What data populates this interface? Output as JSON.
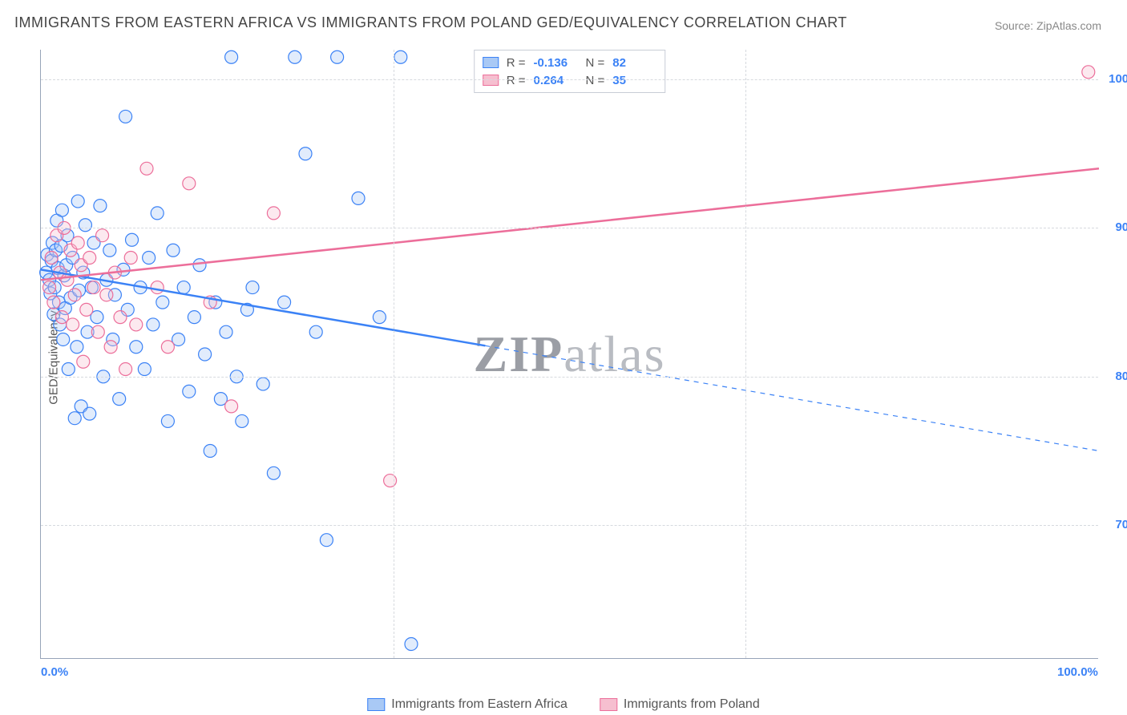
{
  "title": "IMMIGRANTS FROM EASTERN AFRICA VS IMMIGRANTS FROM POLAND GED/EQUIVALENCY CORRELATION CHART",
  "source": "Source: ZipAtlas.com",
  "ylabel": "GED/Equivalency",
  "watermark_a": "ZIP",
  "watermark_b": "atlas",
  "chart": {
    "type": "scatter",
    "background_color": "#ffffff",
    "grid_color": "#d6d9de",
    "axis_color": "#97a4b8",
    "tick_label_color": "#3b82f6",
    "text_color": "#555555",
    "xlim": [
      0,
      100
    ],
    "ylim": [
      61,
      102
    ],
    "x_ticks": [
      0,
      100
    ],
    "x_tick_labels": [
      "0.0%",
      "100.0%"
    ],
    "x_grid_at": [
      33.3,
      66.6
    ],
    "y_ticks": [
      70,
      80,
      90,
      100
    ],
    "y_tick_labels": [
      "70.0%",
      "80.0%",
      "90.0%",
      "100.0%"
    ],
    "marker_radius": 8,
    "marker_stroke_width": 1.2,
    "marker_fill_opacity": 0.35,
    "series": [
      {
        "name": "Immigrants from Eastern Africa",
        "color": "#3b82f6",
        "fill": "#a9c9f5",
        "R": "-0.136",
        "N": "82",
        "trend": {
          "x1": 0,
          "y1": 87.2,
          "x2": 100,
          "y2": 75.0,
          "width": 2.5,
          "solid_until_x": 42,
          "dashed_after": true
        },
        "points": [
          [
            0.5,
            87.0
          ],
          [
            0.6,
            88.2
          ],
          [
            0.8,
            86.5
          ],
          [
            0.9,
            85.6
          ],
          [
            1.0,
            87.8
          ],
          [
            1.1,
            89.0
          ],
          [
            1.2,
            84.2
          ],
          [
            1.3,
            86.0
          ],
          [
            1.4,
            88.5
          ],
          [
            1.5,
            90.5
          ],
          [
            1.6,
            87.3
          ],
          [
            1.7,
            85.0
          ],
          [
            1.8,
            83.5
          ],
          [
            1.9,
            88.8
          ],
          [
            2.0,
            91.2
          ],
          [
            2.1,
            82.5
          ],
          [
            2.2,
            86.8
          ],
          [
            2.3,
            84.6
          ],
          [
            2.4,
            87.5
          ],
          [
            2.5,
            89.5
          ],
          [
            2.6,
            80.5
          ],
          [
            2.8,
            85.3
          ],
          [
            3.0,
            88.0
          ],
          [
            3.2,
            77.2
          ],
          [
            3.4,
            82.0
          ],
          [
            3.5,
            91.8
          ],
          [
            3.6,
            85.8
          ],
          [
            3.8,
            78.0
          ],
          [
            4.0,
            87.0
          ],
          [
            4.2,
            90.2
          ],
          [
            4.4,
            83.0
          ],
          [
            4.6,
            77.5
          ],
          [
            4.8,
            86.0
          ],
          [
            5.0,
            89.0
          ],
          [
            5.3,
            84.0
          ],
          [
            5.6,
            91.5
          ],
          [
            5.9,
            80.0
          ],
          [
            6.2,
            86.5
          ],
          [
            6.5,
            88.5
          ],
          [
            6.8,
            82.5
          ],
          [
            7.0,
            85.5
          ],
          [
            7.4,
            78.5
          ],
          [
            7.8,
            87.2
          ],
          [
            8.0,
            97.5
          ],
          [
            8.2,
            84.5
          ],
          [
            8.6,
            89.2
          ],
          [
            9.0,
            82.0
          ],
          [
            9.4,
            86.0
          ],
          [
            9.8,
            80.5
          ],
          [
            10.2,
            88.0
          ],
          [
            10.6,
            83.5
          ],
          [
            11.0,
            91.0
          ],
          [
            11.5,
            85.0
          ],
          [
            12.0,
            77.0
          ],
          [
            12.5,
            88.5
          ],
          [
            13.0,
            82.5
          ],
          [
            13.5,
            86.0
          ],
          [
            14.0,
            79.0
          ],
          [
            14.5,
            84.0
          ],
          [
            15.0,
            87.5
          ],
          [
            15.5,
            81.5
          ],
          [
            16.0,
            75.0
          ],
          [
            16.5,
            85.0
          ],
          [
            17.0,
            78.5
          ],
          [
            17.5,
            83.0
          ],
          [
            18.0,
            101.5
          ],
          [
            18.5,
            80.0
          ],
          [
            19.0,
            77.0
          ],
          [
            19.5,
            84.5
          ],
          [
            20.0,
            86.0
          ],
          [
            21.0,
            79.5
          ],
          [
            22.0,
            73.5
          ],
          [
            23.0,
            85.0
          ],
          [
            24.0,
            101.5
          ],
          [
            25.0,
            95.0
          ],
          [
            26.0,
            83.0
          ],
          [
            27.0,
            69.0
          ],
          [
            28.0,
            101.5
          ],
          [
            30.0,
            92.0
          ],
          [
            32.0,
            84.0
          ],
          [
            34.0,
            101.5
          ],
          [
            35.0,
            62.0
          ]
        ]
      },
      {
        "name": "Immigrants from Poland",
        "color": "#ec6e9a",
        "fill": "#f6bfd0",
        "R": "0.264",
        "N": "35",
        "trend": {
          "x1": 0,
          "y1": 86.5,
          "x2": 100,
          "y2": 94.0,
          "width": 2.5,
          "solid_until_x": 100,
          "dashed_after": false
        },
        "points": [
          [
            0.8,
            86.0
          ],
          [
            1.0,
            88.0
          ],
          [
            1.2,
            85.0
          ],
          [
            1.5,
            89.5
          ],
          [
            1.8,
            87.0
          ],
          [
            2.0,
            84.0
          ],
          [
            2.2,
            90.0
          ],
          [
            2.5,
            86.5
          ],
          [
            2.8,
            88.5
          ],
          [
            3.0,
            83.5
          ],
          [
            3.2,
            85.5
          ],
          [
            3.5,
            89.0
          ],
          [
            3.8,
            87.5
          ],
          [
            4.0,
            81.0
          ],
          [
            4.3,
            84.5
          ],
          [
            4.6,
            88.0
          ],
          [
            5.0,
            86.0
          ],
          [
            5.4,
            83.0
          ],
          [
            5.8,
            89.5
          ],
          [
            6.2,
            85.5
          ],
          [
            6.6,
            82.0
          ],
          [
            7.0,
            87.0
          ],
          [
            7.5,
            84.0
          ],
          [
            8.0,
            80.5
          ],
          [
            8.5,
            88.0
          ],
          [
            9.0,
            83.5
          ],
          [
            10.0,
            94.0
          ],
          [
            11.0,
            86.0
          ],
          [
            12.0,
            82.0
          ],
          [
            14.0,
            93.0
          ],
          [
            16.0,
            85.0
          ],
          [
            18.0,
            78.0
          ],
          [
            22.0,
            91.0
          ],
          [
            33.0,
            73.0
          ],
          [
            99.0,
            100.5
          ]
        ]
      }
    ],
    "legend_bottom": [
      {
        "label": "Immigrants from Eastern Africa",
        "fill": "#a9c9f5",
        "stroke": "#3b82f6"
      },
      {
        "label": "Immigrants from Poland",
        "fill": "#f6bfd0",
        "stroke": "#ec6e9a"
      }
    ]
  }
}
